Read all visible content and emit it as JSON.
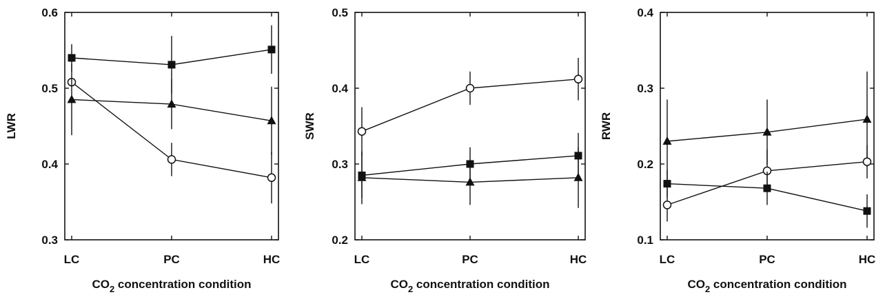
{
  "chart_data": [
    {
      "type": "line",
      "categories": [
        "LC",
        "PC",
        "HC"
      ],
      "ylabel": "LWR",
      "xlabel": {
        "prefix": "CO",
        "subscript": "2",
        "suffix": " concentration condition"
      },
      "ylim": [
        0.3,
        0.6
      ],
      "yticks": [
        "0.3",
        "0.4",
        "0.5",
        "0.6"
      ],
      "grid": false,
      "series": [
        {
          "marker": "square",
          "values": [
            0.54,
            0.531,
            0.551
          ],
          "errors": [
            0.018,
            0.038,
            0.032
          ]
        },
        {
          "marker": "circle",
          "values": [
            0.508,
            0.406,
            0.382
          ],
          "errors": [
            0.0,
            0.022,
            0.034
          ]
        },
        {
          "marker": "triangle",
          "values": [
            0.485,
            0.479,
            0.457
          ],
          "errors": [
            0.047,
            0.033,
            0.045
          ]
        }
      ]
    },
    {
      "type": "line",
      "categories": [
        "LC",
        "PC",
        "HC"
      ],
      "ylabel": "SWR",
      "xlabel": {
        "prefix": "CO",
        "subscript": "2",
        "suffix": " concentration condition"
      },
      "ylim": [
        0.2,
        0.5
      ],
      "yticks": [
        "0.2",
        "0.3",
        "0.4",
        "0.5"
      ],
      "grid": false,
      "series": [
        {
          "marker": "circle",
          "values": [
            0.343,
            0.4,
            0.412
          ],
          "errors": [
            0.032,
            0.022,
            0.028
          ]
        },
        {
          "marker": "square",
          "values": [
            0.285,
            0.3,
            0.311
          ],
          "errors": [
            0.03,
            0.022,
            0.03
          ]
        },
        {
          "marker": "triangle",
          "values": [
            0.282,
            0.276,
            0.282
          ],
          "errors": [
            0.035,
            0.03,
            0.04
          ]
        }
      ]
    },
    {
      "type": "line",
      "categories": [
        "LC",
        "PC",
        "HC"
      ],
      "ylabel": "RWR",
      "xlabel": {
        "prefix": "CO",
        "subscript": "2",
        "suffix": " concentration condition"
      },
      "ylim": [
        0.1,
        0.4
      ],
      "yticks": [
        "0.1",
        "0.2",
        "0.3",
        "0.4"
      ],
      "grid": false,
      "series": [
        {
          "marker": "triangle",
          "values": [
            0.23,
            0.242,
            0.259
          ],
          "errors": [
            0.055,
            0.043,
            0.063
          ]
        },
        {
          "marker": "circle",
          "values": [
            0.146,
            0.191,
            0.203
          ],
          "errors": [
            0.022,
            0.028,
            0.022
          ]
        },
        {
          "marker": "square",
          "values": [
            0.174,
            0.168,
            0.138
          ],
          "errors": [
            0.018,
            0.022,
            0.022
          ]
        }
      ]
    }
  ]
}
